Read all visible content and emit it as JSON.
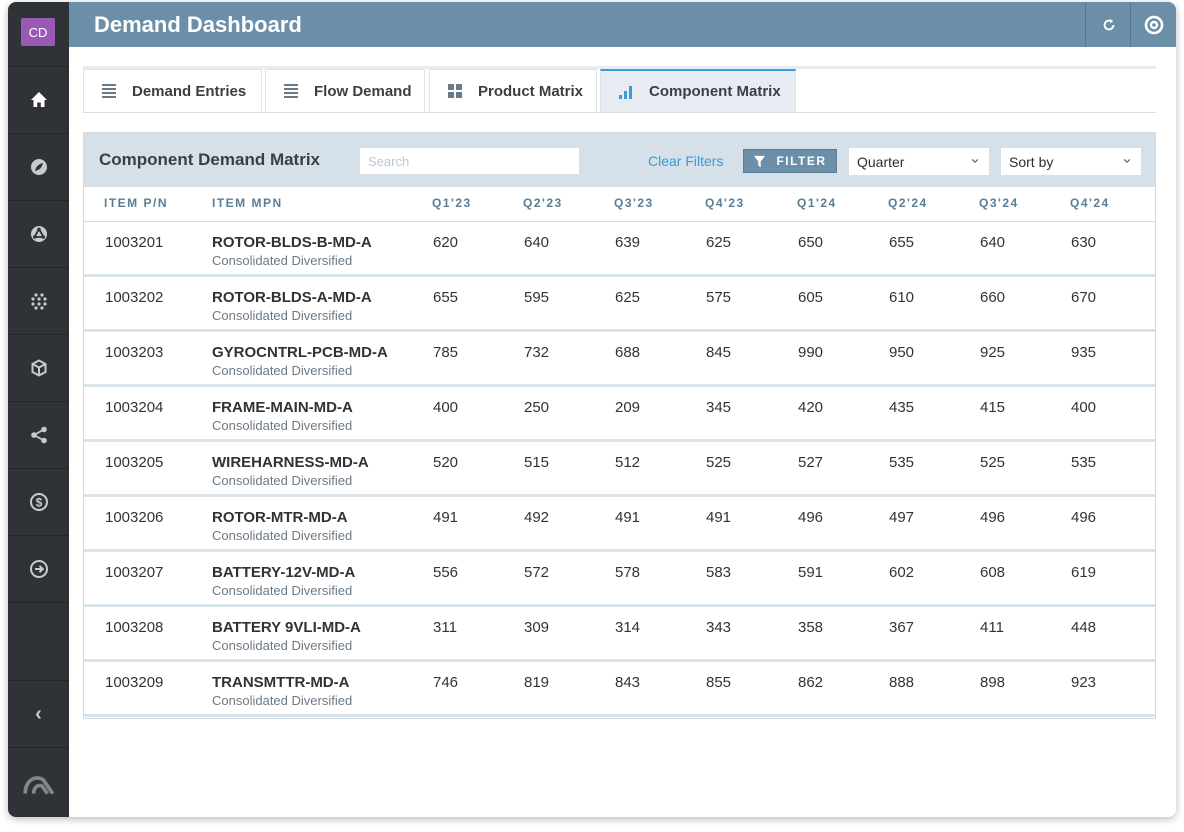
{
  "app": {
    "title": "Demand Dashboard",
    "avatar": "CD"
  },
  "sidebar": {
    "items": [
      {
        "icon": "home-icon",
        "active": true
      },
      {
        "icon": "leaf-icon"
      },
      {
        "icon": "network-icon"
      },
      {
        "icon": "grid-dots-icon"
      },
      {
        "icon": "cube-icon"
      },
      {
        "icon": "share-icon"
      },
      {
        "icon": "dollar-icon"
      },
      {
        "icon": "arrow-right-circle-icon"
      }
    ],
    "collapse": "‹",
    "logo": "logo-icon"
  },
  "tabs": [
    {
      "label": "Demand Entries",
      "icon": "list-icon"
    },
    {
      "label": "Flow Demand",
      "icon": "list-icon"
    },
    {
      "label": "Product Matrix",
      "icon": "grid-icon"
    },
    {
      "label": "Component Matrix",
      "icon": "bar-chart-icon",
      "active": true
    }
  ],
  "panel": {
    "title": "Component Demand Matrix",
    "search_placeholder": "Search",
    "clear_filters": "Clear Filters",
    "filter_label": "FILTER",
    "quarter_select": "Quarter",
    "sort_select": "Sort by"
  },
  "colors": {
    "header": "#6b8fa8",
    "sidebar": "#2f3236",
    "accent": "#3a9bd5",
    "avatar": "#9b59b6"
  },
  "table": {
    "columns": [
      "ITEM P/N",
      "ITEM MPN",
      "Q1'23",
      "Q2'23",
      "Q3'23",
      "Q4'23",
      "Q1'24",
      "Q2'24",
      "Q3'24",
      "Q4'24"
    ],
    "rows": [
      {
        "pn": "1003201",
        "mpn": "ROTOR-BLDS-B-MD-A",
        "mfr": "Consolidated Diversified",
        "values": [
          "620",
          "640",
          "639",
          "625",
          "650",
          "655",
          "640",
          "630"
        ]
      },
      {
        "pn": "1003202",
        "mpn": "ROTOR-BLDS-A-MD-A",
        "mfr": "Consolidated Diversified",
        "values": [
          "655",
          "595",
          "625",
          "575",
          "605",
          "610",
          "660",
          "670"
        ]
      },
      {
        "pn": "1003203",
        "mpn": "GYROCNTRL-PCB-MD-A",
        "mfr": "Consolidated Diversified",
        "values": [
          "785",
          "732",
          "688",
          "845",
          "990",
          "950",
          "925",
          "935"
        ]
      },
      {
        "pn": "1003204",
        "mpn": "FRAME-MAIN-MD-A",
        "mfr": "Consolidated Diversified",
        "values": [
          "400",
          "250",
          "209",
          "345",
          "420",
          "435",
          "415",
          "400"
        ]
      },
      {
        "pn": "1003205",
        "mpn": "WIREHARNESS-MD-A",
        "mfr": "Consolidated Diversified",
        "values": [
          "520",
          "515",
          "512",
          "525",
          "527",
          "535",
          "525",
          "535"
        ]
      },
      {
        "pn": "1003206",
        "mpn": "ROTOR-MTR-MD-A",
        "mfr": "Consolidated Diversified",
        "values": [
          "491",
          "492",
          "491",
          "491",
          "496",
          "497",
          "496",
          "496"
        ]
      },
      {
        "pn": "1003207",
        "mpn": "BATTERY-12V-MD-A",
        "mfr": "Consolidated Diversified",
        "values": [
          "556",
          "572",
          "578",
          "583",
          "591",
          "602",
          "608",
          "619"
        ]
      },
      {
        "pn": "1003208",
        "mpn": "BATTERY 9VLI-MD-A",
        "mfr": "Consolidated Diversified",
        "values": [
          "311",
          "309",
          "314",
          "343",
          "358",
          "367",
          "411",
          "448"
        ]
      },
      {
        "pn": "1003209",
        "mpn": "TRANSMTTR-MD-A",
        "mfr": "Consolidated Diversified",
        "values": [
          "746",
          "819",
          "843",
          "855",
          "862",
          "888",
          "898",
          "923"
        ]
      }
    ]
  }
}
